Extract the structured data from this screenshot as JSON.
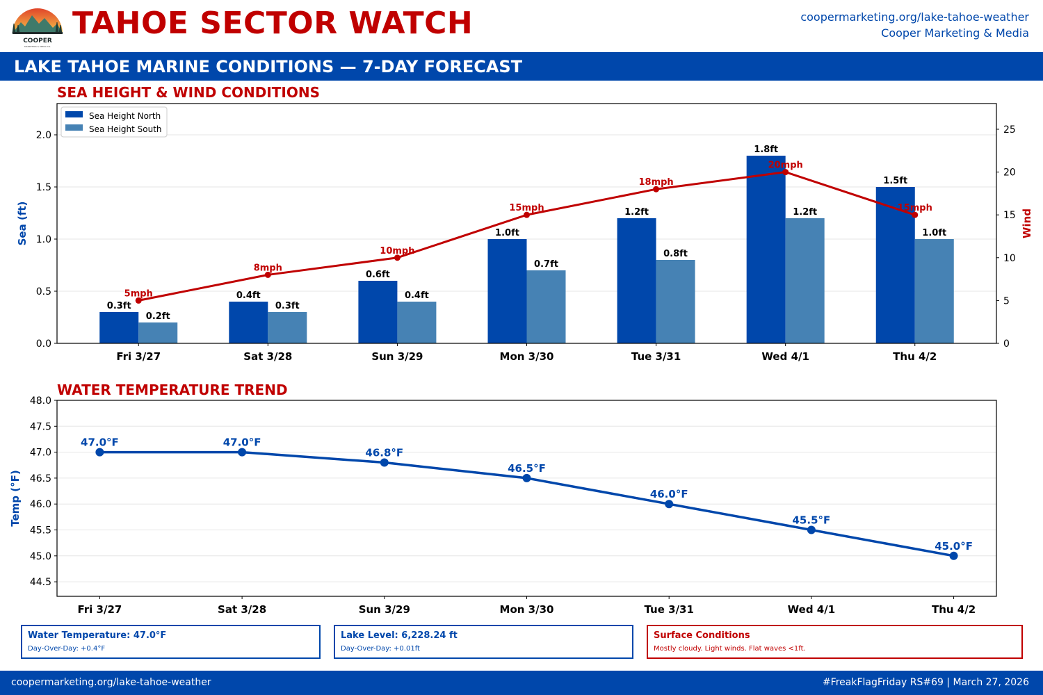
{
  "header": {
    "logo_text": "COOPER",
    "logo_subtext": "MARKETING & MEDIA CO.",
    "title": "TAHOE SECTOR WATCH",
    "url": "coopermarketing.org/lake-tahoe-weather",
    "org": "Cooper Marketing & Media"
  },
  "banner": "LAKE TAHOE MARINE CONDITIONS — 7-DAY FORECAST",
  "colors": {
    "brand_blue": "#0047ab",
    "south_blue": "#4682b4",
    "accent_red": "#c00000"
  },
  "chart_data": [
    {
      "type": "bar",
      "title": "SEA HEIGHT & WIND CONDITIONS",
      "categories": [
        "Fri 3/27",
        "Sat 3/28",
        "Sun 3/29",
        "Mon 3/30",
        "Tue 3/31",
        "Wed 4/1",
        "Thu 4/2"
      ],
      "ylabel": "Sea (ft)",
      "ylim": [
        0,
        2.3
      ],
      "yticks": [
        0.0,
        0.5,
        1.0,
        1.5,
        2.0
      ],
      "y2label": "Wind",
      "y2lim": [
        0,
        28
      ],
      "y2ticks": [
        0,
        5,
        10,
        15,
        20,
        25
      ],
      "legend": "top-left",
      "grid": true,
      "series": [
        {
          "name": "Sea Height North",
          "type": "bar",
          "color": "#0047ab",
          "values": [
            0.3,
            0.4,
            0.6,
            1.0,
            1.2,
            1.8,
            1.5
          ],
          "labels": [
            "0.3ft",
            "0.4ft",
            "0.6ft",
            "1.0ft",
            "1.2ft",
            "1.8ft",
            "1.5ft"
          ]
        },
        {
          "name": "Sea Height South",
          "type": "bar",
          "color": "#4682b4",
          "values": [
            0.2,
            0.3,
            0.4,
            0.7,
            0.8,
            1.2,
            1.0
          ],
          "labels": [
            "0.2ft",
            "0.3ft",
            "0.4ft",
            "0.7ft",
            "0.8ft",
            "1.2ft",
            "1.0ft"
          ]
        },
        {
          "type": "line",
          "axis": "right",
          "color": "#c00000",
          "values": [
            5,
            8,
            10,
            15,
            18,
            20,
            15
          ],
          "labels": [
            "5mph",
            "8mph",
            "10mph",
            "15mph",
            "18mph",
            "20mph",
            "15mph"
          ]
        }
      ]
    },
    {
      "type": "line",
      "title": "WATER TEMPERATURE TREND",
      "categories": [
        "Fri 3/27",
        "Sat 3/28",
        "Sun 3/29",
        "Mon 3/30",
        "Tue 3/31",
        "Wed 4/1",
        "Thu 4/2"
      ],
      "ylabel": "Temp (°F)",
      "ylim": [
        44.22,
        48.0
      ],
      "yticks": [
        44.5,
        45.0,
        45.5,
        46.0,
        46.5,
        47.0,
        47.5,
        48.0
      ],
      "grid": true,
      "series": [
        {
          "color": "#0047ab",
          "values": [
            47.0,
            47.0,
            46.8,
            46.5,
            46.0,
            45.5,
            45.0
          ],
          "labels": [
            "47.0°F",
            "47.0°F",
            "46.8°F",
            "46.5°F",
            "46.0°F",
            "45.5°F",
            "45.0°F"
          ]
        }
      ]
    }
  ],
  "info_boxes": [
    {
      "title": "Water Temperature: 47.0°F",
      "subtitle": "Day-Over-Day: +0.4°F"
    },
    {
      "title": "Lake Level: 6,228.24 ft",
      "subtitle": "Day-Over-Day: +0.01ft"
    },
    {
      "title": "Surface Conditions",
      "subtitle": "Mostly cloudy. Light winds. Flat waves <1ft."
    }
  ],
  "footer": {
    "left": "coopermarketing.org/lake-tahoe-weather",
    "right": "#FreakFlagFriday RS#69 | March 27, 2026"
  }
}
